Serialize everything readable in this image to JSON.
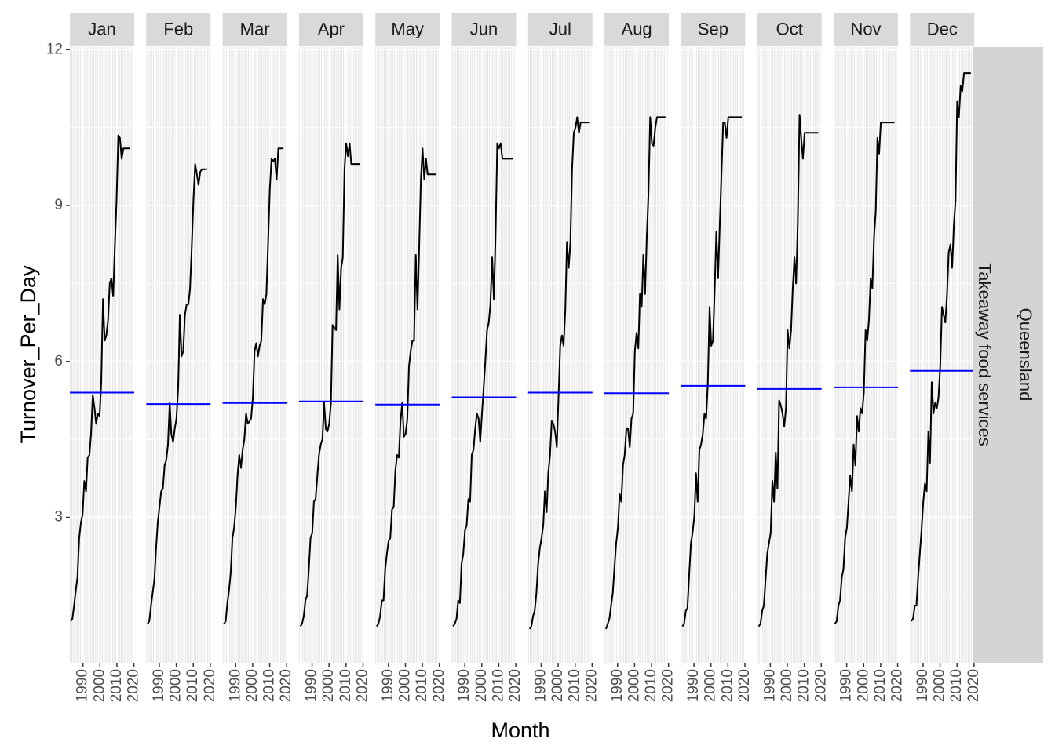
{
  "chart_data": {
    "type": "line",
    "facet_type": "season-subseries",
    "xlabel": "Month",
    "ylabel": "Turnover_Per_Day",
    "facet_row_labels": [
      "Takeaway food services",
      "Queensland"
    ],
    "x_ticks": [
      1990,
      2000,
      2010,
      2020
    ],
    "x_tick_labels": [
      "1990",
      "2000",
      "2010",
      "2020"
    ],
    "x_range": [
      1982.3,
      2020.2
    ],
    "ylim": [
      0.2,
      12.05
    ],
    "y_ticks": [
      3,
      6,
      9,
      12
    ],
    "y_tick_labels": [
      "3",
      "6",
      "9",
      "12"
    ],
    "grid": true,
    "colors": {
      "panel_bg": "#e6e6e6",
      "grid": "#ffffff",
      "strip_bg": "#d9d9d9",
      "row_strip_bg": "#d4d4d4",
      "series_line": "#000000",
      "mean_line": "#0000ff"
    },
    "facets": [
      {
        "label": "Jan",
        "mean": 5.4,
        "x": [
          1982.8,
          1983.8,
          1984.8,
          1985.8,
          1986.8,
          1987.8,
          1988.8,
          1989.8,
          1990.8,
          1991.8,
          1992.8,
          1993.8,
          1994.8,
          1995.8,
          1996.8,
          1997.8,
          1998.8,
          1999.8,
          2000.8,
          2001.8,
          2002.8,
          2003.8,
          2004.8,
          2005.8,
          2006.8,
          2007.8,
          2008.8,
          2009.8,
          2010.8,
          2011.8,
          2012.8,
          2013.8,
          2014.8,
          2015.8,
          2016.8,
          2017.8
        ],
        "y": [
          1.0,
          1.05,
          1.3,
          1.6,
          1.85,
          2.6,
          2.9,
          3.05,
          3.7,
          3.5,
          4.15,
          4.2,
          4.6,
          5.35,
          5.1,
          4.8,
          5.0,
          4.95,
          5.6,
          7.2,
          6.4,
          6.5,
          6.8,
          7.5,
          7.6,
          7.25,
          8.2,
          9.1,
          10.35,
          10.3,
          9.9,
          10.1,
          10.1,
          10.1,
          10.1,
          10.1
        ]
      },
      {
        "label": "Feb",
        "mean": 5.18,
        "x": [
          1983.1,
          1984.1,
          1985.1,
          1986.1,
          1987.1,
          1988.1,
          1989.1,
          1990.1,
          1991.1,
          1992.1,
          1993.1,
          1994.1,
          1995.1,
          1996.1,
          1997.1,
          1998.1,
          1999.1,
          2000.1,
          2001.1,
          2002.1,
          2003.1,
          2004.1,
          2005.1,
          2006.1,
          2007.1,
          2008.1,
          2009.1,
          2010.1,
          2011.1,
          2012.1,
          2013.1,
          2014.1,
          2015.1,
          2016.1,
          2017.1,
          2018.1
        ],
        "y": [
          0.95,
          1.0,
          1.3,
          1.55,
          1.8,
          2.4,
          2.9,
          3.2,
          3.5,
          3.55,
          4.0,
          4.1,
          4.4,
          5.2,
          4.6,
          4.45,
          4.7,
          4.9,
          5.5,
          6.9,
          6.1,
          6.2,
          6.9,
          7.1,
          7.1,
          7.4,
          8.2,
          9.1,
          9.8,
          9.6,
          9.4,
          9.65,
          9.7,
          9.7,
          9.7,
          9.7
        ]
      },
      {
        "label": "Mar",
        "mean": 5.2,
        "x": [
          1983.1,
          1984.1,
          1985.1,
          1986.1,
          1987.1,
          1988.1,
          1989.1,
          1990.1,
          1991.1,
          1992.1,
          1993.1,
          1994.1,
          1995.1,
          1996.1,
          1997.1,
          1998.1,
          1999.1,
          2000.1,
          2001.1,
          2002.1,
          2003.1,
          2004.1,
          2005.1,
          2006.1,
          2007.1,
          2008.1,
          2009.1,
          2010.1,
          2011.1,
          2012.1,
          2013.1,
          2014.1,
          2015.1,
          2016.1,
          2017.1,
          2018.1
        ],
        "y": [
          0.95,
          1.0,
          1.35,
          1.6,
          1.95,
          2.6,
          2.8,
          3.2,
          3.8,
          4.2,
          3.95,
          4.3,
          4.5,
          5.0,
          4.8,
          4.85,
          4.9,
          5.3,
          6.2,
          6.35,
          6.1,
          6.3,
          6.4,
          7.2,
          7.1,
          7.3,
          8.3,
          9.3,
          9.9,
          9.85,
          9.9,
          9.5,
          10.1,
          10.1,
          10.1,
          10.1
        ]
      },
      {
        "label": "Apr",
        "mean": 5.23,
        "x": [
          1983.1,
          1984.1,
          1985.1,
          1986.1,
          1987.1,
          1988.1,
          1989.1,
          1990.1,
          1991.1,
          1992.1,
          1993.1,
          1994.1,
          1995.1,
          1996.1,
          1997.1,
          1998.1,
          1999.1,
          2000.1,
          2001.1,
          2002.1,
          2003.1,
          2004.1,
          2005.1,
          2006.1,
          2007.1,
          2008.1,
          2009.1,
          2010.1,
          2011.1,
          2012.1,
          2013.1,
          2014.1,
          2015.1,
          2016.1,
          2017.1,
          2018.1
        ],
        "y": [
          0.9,
          0.95,
          1.1,
          1.4,
          1.5,
          2.0,
          2.6,
          2.7,
          3.3,
          3.35,
          3.8,
          4.2,
          4.4,
          4.5,
          5.2,
          4.7,
          4.65,
          4.8,
          5.2,
          6.7,
          6.65,
          6.6,
          8.05,
          7.0,
          7.8,
          8.0,
          9.7,
          10.2,
          9.95,
          10.2,
          9.8,
          9.8,
          9.8,
          9.8,
          9.8,
          9.8
        ]
      },
      {
        "label": "May",
        "mean": 5.17,
        "x": [
          1983.1,
          1984.1,
          1985.1,
          1986.1,
          1987.1,
          1988.1,
          1989.1,
          1990.1,
          1991.1,
          1992.1,
          1993.1,
          1994.1,
          1995.1,
          1996.1,
          1997.1,
          1998.1,
          1999.1,
          2000.1,
          2001.1,
          2002.1,
          2003.1,
          2004.1,
          2005.1,
          2006.1,
          2007.1,
          2008.1,
          2009.1,
          2010.1,
          2011.1,
          2012.1,
          2013.1,
          2014.1,
          2015.1,
          2016.1,
          2017.1,
          2018.1
        ],
        "y": [
          0.9,
          0.95,
          1.1,
          1.4,
          1.4,
          2.0,
          2.3,
          2.55,
          2.6,
          3.15,
          3.2,
          3.9,
          4.2,
          4.15,
          4.85,
          5.2,
          4.55,
          4.6,
          4.9,
          5.9,
          6.2,
          6.4,
          6.4,
          8.05,
          7.0,
          8.2,
          9.5,
          10.1,
          9.5,
          9.9,
          9.6,
          9.6,
          9.6,
          9.6,
          9.6,
          9.6
        ]
      },
      {
        "label": "Jun",
        "mean": 5.31,
        "x": [
          1983.1,
          1984.1,
          1985.1,
          1986.1,
          1987.1,
          1988.1,
          1989.1,
          1990.1,
          1991.1,
          1992.1,
          1993.1,
          1994.1,
          1995.1,
          1996.1,
          1997.1,
          1998.1,
          1999.1,
          2000.1,
          2001.1,
          2002.1,
          2003.1,
          2004.1,
          2005.1,
          2006.1,
          2007.1,
          2008.1,
          2009.1,
          2010.1,
          2011.1,
          2012.1,
          2013.1,
          2014.1,
          2015.1,
          2016.1,
          2017.1,
          2018.1
        ],
        "y": [
          0.9,
          0.95,
          1.05,
          1.4,
          1.35,
          2.1,
          2.3,
          2.75,
          2.85,
          3.35,
          3.3,
          4.2,
          4.3,
          4.7,
          5.0,
          4.9,
          4.45,
          5.0,
          5.5,
          6.0,
          6.6,
          6.75,
          7.1,
          8.0,
          7.2,
          8.4,
          10.2,
          10.1,
          10.2,
          9.9,
          9.9,
          9.9,
          9.9,
          9.9,
          9.9,
          9.9
        ]
      },
      {
        "label": "Jul",
        "mean": 5.4,
        "x": [
          1983.2,
          1984.2,
          1985.2,
          1986.2,
          1987.2,
          1988.2,
          1989.2,
          1990.2,
          1991.2,
          1992.2,
          1993.2,
          1994.2,
          1995.2,
          1996.2,
          1997.2,
          1998.2,
          1999.2,
          2000.2,
          2001.2,
          2002.2,
          2003.2,
          2004.2,
          2005.2,
          2006.2,
          2007.2,
          2008.2,
          2009.2,
          2010.2,
          2011.2,
          2012.2,
          2013.2,
          2014.2,
          2015.2,
          2016.2,
          2017.2,
          2018.2
        ],
        "y": [
          0.85,
          0.9,
          1.1,
          1.2,
          1.55,
          2.1,
          2.4,
          2.6,
          2.85,
          3.5,
          3.1,
          3.85,
          4.2,
          4.85,
          4.8,
          4.65,
          4.35,
          5.3,
          6.3,
          6.5,
          6.3,
          7.0,
          8.3,
          7.8,
          8.3,
          9.7,
          10.4,
          10.5,
          10.7,
          10.4,
          10.6,
          10.6,
          10.6,
          10.6,
          10.6,
          10.6
        ]
      },
      {
        "label": "Aug",
        "mean": 5.39,
        "x": [
          1983.2,
          1984.2,
          1985.2,
          1986.2,
          1987.2,
          1988.2,
          1989.2,
          1990.2,
          1991.2,
          1992.2,
          1993.2,
          1994.2,
          1995.2,
          1996.2,
          1997.2,
          1998.2,
          1999.2,
          2000.2,
          2001.2,
          2002.2,
          2003.2,
          2004.2,
          2005.2,
          2006.2,
          2007.2,
          2008.2,
          2009.2,
          2010.2,
          2011.2,
          2012.2,
          2013.2,
          2014.2,
          2015.2,
          2016.2,
          2017.2,
          2018.2
        ],
        "y": [
          0.85,
          0.95,
          1.05,
          1.3,
          1.55,
          2.05,
          2.5,
          2.8,
          3.45,
          3.3,
          4.0,
          4.2,
          4.7,
          4.7,
          4.35,
          4.9,
          5.0,
          6.2,
          6.55,
          6.25,
          7.3,
          7.05,
          8.05,
          7.3,
          8.4,
          9.2,
          10.7,
          10.2,
          10.15,
          10.5,
          10.7,
          10.7,
          10.7,
          10.7,
          10.7,
          10.7
        ]
      },
      {
        "label": "Sep",
        "mean": 5.53,
        "x": [
          1983.2,
          1984.2,
          1985.2,
          1986.2,
          1987.2,
          1988.2,
          1989.2,
          1990.2,
          1991.2,
          1992.2,
          1993.2,
          1994.2,
          1995.2,
          1996.2,
          1997.2,
          1998.2,
          1999.2,
          2000.2,
          2001.2,
          2002.2,
          2003.2,
          2004.2,
          2005.2,
          2006.2,
          2007.2,
          2008.2,
          2009.2,
          2010.2,
          2011.2,
          2012.2,
          2013.2,
          2014.2,
          2015.2,
          2016.2,
          2017.2,
          2018.2
        ],
        "y": [
          0.9,
          0.95,
          1.2,
          1.25,
          1.9,
          2.5,
          2.7,
          3.0,
          3.85,
          3.3,
          4.3,
          4.4,
          4.6,
          5.0,
          4.9,
          5.6,
          7.05,
          6.3,
          6.4,
          7.4,
          8.5,
          7.6,
          8.6,
          9.6,
          10.6,
          10.6,
          10.3,
          10.7,
          10.7,
          10.7,
          10.7,
          10.7,
          10.7,
          10.7,
          10.7,
          10.7
        ]
      },
      {
        "label": "Oct",
        "mean": 5.47,
        "x": [
          1983.2,
          1984.2,
          1985.2,
          1986.2,
          1987.2,
          1988.2,
          1989.2,
          1990.2,
          1991.2,
          1992.2,
          1993.2,
          1994.2,
          1995.2,
          1996.2,
          1997.2,
          1998.2,
          1999.2,
          2000.2,
          2001.2,
          2002.2,
          2003.2,
          2004.2,
          2005.2,
          2006.2,
          2007.2,
          2008.2,
          2009.2,
          2010.2,
          2011.2,
          2012.2,
          2013.2,
          2014.2,
          2015.2,
          2016.2,
          2017.2,
          2018.2
        ],
        "y": [
          0.9,
          0.95,
          1.2,
          1.3,
          1.8,
          2.3,
          2.5,
          2.7,
          3.7,
          3.3,
          4.25,
          3.55,
          5.25,
          5.15,
          5.0,
          4.75,
          5.1,
          6.6,
          6.25,
          6.6,
          7.4,
          8.0,
          7.5,
          8.7,
          10.75,
          10.3,
          9.9,
          10.4,
          10.4,
          10.4,
          10.4,
          10.4,
          10.4,
          10.4,
          10.4,
          10.4
        ]
      },
      {
        "label": "Nov",
        "mean": 5.5,
        "x": [
          1983.1,
          1984.1,
          1985.1,
          1986.1,
          1987.1,
          1988.1,
          1989.1,
          1990.1,
          1991.1,
          1992.1,
          1993.1,
          1994.1,
          1995.1,
          1996.1,
          1997.1,
          1998.1,
          1999.1,
          2000.1,
          2001.1,
          2002.1,
          2003.1,
          2004.1,
          2005.1,
          2006.1,
          2007.1,
          2008.1,
          2009.1,
          2010.1,
          2011.1,
          2012.1,
          2013.1,
          2014.1,
          2015.1,
          2016.1,
          2017.1,
          2018.1
        ],
        "y": [
          0.95,
          1.0,
          1.3,
          1.4,
          1.85,
          2.0,
          2.6,
          2.8,
          3.3,
          3.8,
          3.5,
          4.4,
          4.0,
          4.95,
          4.65,
          5.1,
          5.0,
          5.4,
          6.6,
          6.4,
          6.8,
          7.6,
          7.4,
          8.4,
          8.9,
          10.3,
          10.0,
          10.6,
          10.6,
          10.6,
          10.6,
          10.6,
          10.6,
          10.6,
          10.6,
          10.6
        ]
      },
      {
        "label": "Dec",
        "mean": 5.82,
        "x": [
          1983.1,
          1984.1,
          1985.1,
          1986.1,
          1987.1,
          1988.1,
          1989.1,
          1990.1,
          1991.1,
          1992.1,
          1993.1,
          1994.1,
          1995.1,
          1996.1,
          1997.1,
          1998.1,
          1999.1,
          2000.1,
          2001.1,
          2002.1,
          2003.1,
          2004.1,
          2005.1,
          2006.1,
          2007.1,
          2008.1,
          2009.1,
          2010.1,
          2011.1,
          2012.1,
          2013.1,
          2014.1,
          2015.1,
          2016.1,
          2017.1,
          2018.1
        ],
        "y": [
          1.0,
          1.05,
          1.3,
          1.3,
          1.85,
          2.3,
          2.75,
          3.3,
          3.65,
          3.5,
          4.65,
          4.05,
          5.6,
          5.0,
          5.2,
          5.1,
          5.3,
          5.9,
          7.05,
          6.9,
          6.75,
          7.3,
          8.1,
          8.25,
          7.8,
          8.6,
          9.1,
          11.0,
          10.7,
          11.3,
          11.2,
          11.55,
          11.55,
          11.55,
          11.55,
          11.55
        ]
      }
    ]
  }
}
